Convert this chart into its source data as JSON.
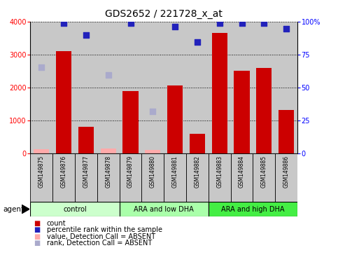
{
  "title": "GDS2652 / 221728_x_at",
  "samples": [
    "GSM149875",
    "GSM149876",
    "GSM149877",
    "GSM149878",
    "GSM149879",
    "GSM149880",
    "GSM149881",
    "GSM149882",
    "GSM149883",
    "GSM149884",
    "GSM149885",
    "GSM149886"
  ],
  "bar_values": [
    null,
    3100,
    800,
    null,
    1900,
    null,
    2050,
    590,
    3650,
    2500,
    2600,
    1320
  ],
  "absent_bar_values": [
    130,
    null,
    null,
    150,
    null,
    100,
    null,
    null,
    null,
    null,
    null,
    null
  ],
  "blue_dot_values": [
    null,
    3950,
    3600,
    null,
    3950,
    null,
    3850,
    3380,
    3950,
    3950,
    3950,
    3780
  ],
  "absent_blue_dot_values": [
    2620,
    null,
    null,
    2380,
    null,
    1280,
    null,
    null,
    null,
    null,
    null,
    null
  ],
  "bar_color": "#cc0000",
  "absent_bar_color": "#ffaaaa",
  "blue_dot_color": "#2222bb",
  "absent_blue_dot_color": "#aaaacc",
  "ylim": [
    0,
    4000
  ],
  "y2lim": [
    0,
    100
  ],
  "yticks": [
    0,
    1000,
    2000,
    3000,
    4000
  ],
  "y2ticks": [
    0,
    25,
    50,
    75,
    100
  ],
  "groups": [
    {
      "label": "control",
      "start": 0,
      "end": 4,
      "color": "#ccffcc"
    },
    {
      "label": "ARA and low DHA",
      "start": 4,
      "end": 8,
      "color": "#aaffaa"
    },
    {
      "label": "ARA and high DHA",
      "start": 8,
      "end": 12,
      "color": "#44ee44"
    }
  ],
  "bg_color": "#c8c8c8",
  "title_fontsize": 10,
  "tick_fontsize": 7,
  "sample_fontsize": 5.5,
  "group_fontsize": 7,
  "legend_fontsize": 7
}
